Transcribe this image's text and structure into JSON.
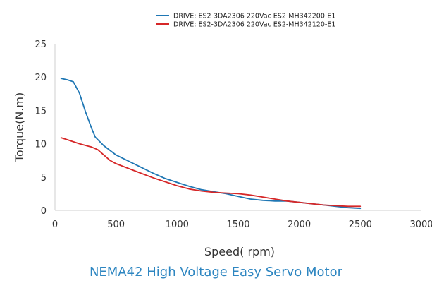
{
  "caption": "NEMA42 High Voltage Easy Servo Motor",
  "chart_data": {
    "type": "line",
    "xlabel": "Speed( rpm)",
    "ylabel": "Torque(N.m)",
    "xlim": [
      0,
      3000
    ],
    "ylim": [
      0,
      25
    ],
    "x_ticks": [
      0,
      500,
      1000,
      1500,
      2000,
      2500,
      3000
    ],
    "y_ticks": [
      0,
      5,
      10,
      15,
      20,
      25
    ],
    "grid": false,
    "legend_position": "top-center",
    "series": [
      {
        "name": "DRIVE: ES2-3DA2306 220Vac ES2-MH342200-E1",
        "color": "#1f77b4",
        "points": [
          [
            50,
            19.8
          ],
          [
            100,
            19.6
          ],
          [
            150,
            19.3
          ],
          [
            200,
            17.6
          ],
          [
            250,
            14.8
          ],
          [
            300,
            12.3
          ],
          [
            330,
            11.0
          ],
          [
            400,
            9.7
          ],
          [
            500,
            8.3
          ],
          [
            600,
            7.4
          ],
          [
            700,
            6.5
          ],
          [
            800,
            5.6
          ],
          [
            900,
            4.8
          ],
          [
            1000,
            4.2
          ],
          [
            1100,
            3.6
          ],
          [
            1200,
            3.1
          ],
          [
            1300,
            2.8
          ],
          [
            1400,
            2.5
          ],
          [
            1500,
            2.1
          ],
          [
            1600,
            1.7
          ],
          [
            1700,
            1.5
          ],
          [
            1800,
            1.4
          ],
          [
            1900,
            1.4
          ],
          [
            2000,
            1.2
          ],
          [
            2100,
            1.0
          ],
          [
            2200,
            0.8
          ],
          [
            2300,
            0.6
          ],
          [
            2400,
            0.4
          ],
          [
            2500,
            0.3
          ]
        ]
      },
      {
        "name": "DRIVE: ES2-3DA2306 220Vac ES2-MH342120-E1",
        "color": "#d62728",
        "points": [
          [
            50,
            10.9
          ],
          [
            100,
            10.6
          ],
          [
            200,
            10.0
          ],
          [
            300,
            9.5
          ],
          [
            350,
            9.1
          ],
          [
            400,
            8.3
          ],
          [
            450,
            7.5
          ],
          [
            500,
            7.0
          ],
          [
            600,
            6.3
          ],
          [
            700,
            5.6
          ],
          [
            800,
            4.9
          ],
          [
            900,
            4.3
          ],
          [
            1000,
            3.7
          ],
          [
            1100,
            3.2
          ],
          [
            1200,
            2.9
          ],
          [
            1300,
            2.7
          ],
          [
            1400,
            2.6
          ],
          [
            1500,
            2.5
          ],
          [
            1600,
            2.3
          ],
          [
            1700,
            2.0
          ],
          [
            1800,
            1.7
          ],
          [
            1900,
            1.4
          ],
          [
            2000,
            1.2
          ],
          [
            2100,
            1.0
          ],
          [
            2200,
            0.8
          ],
          [
            2300,
            0.7
          ],
          [
            2400,
            0.6
          ],
          [
            2500,
            0.6
          ]
        ]
      }
    ]
  }
}
